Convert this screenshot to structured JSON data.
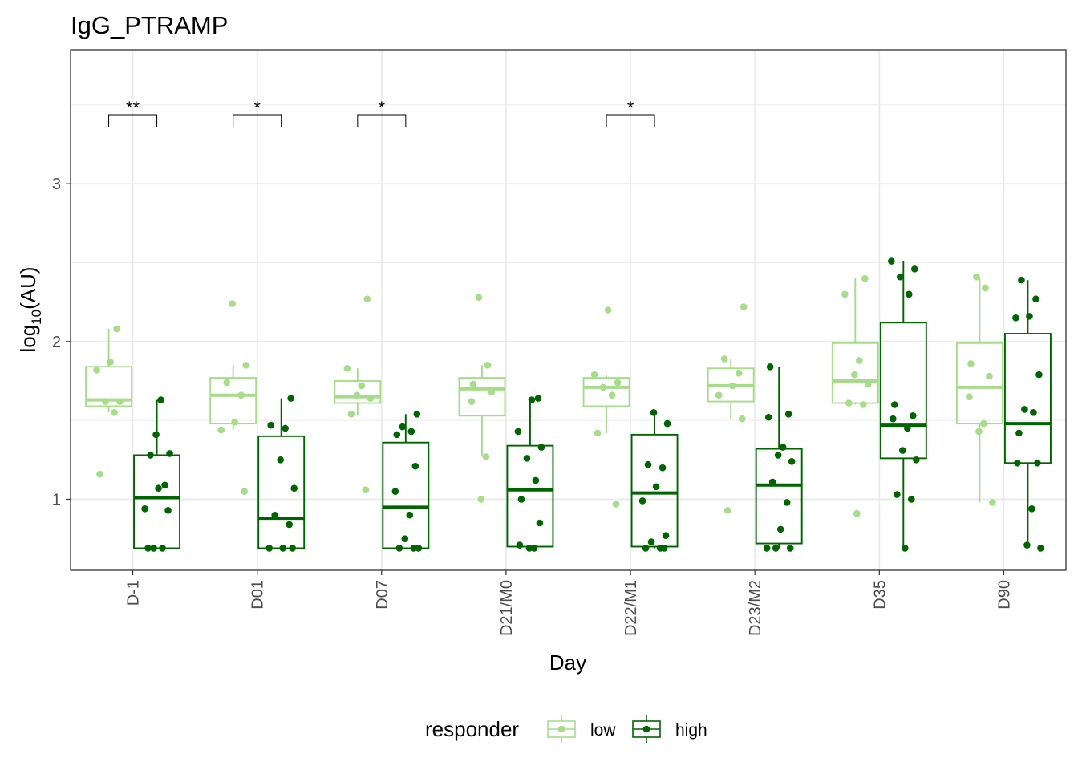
{
  "chart_data": {
    "type": "box",
    "title": "IgG_PTRAMP",
    "xlabel": "Day",
    "ylabel_main": "log",
    "ylabel_sub": "10",
    "ylabel_rest": "(AU)",
    "ylim": [
      0.55,
      3.85
    ],
    "yticks": [
      1,
      2,
      3
    ],
    "categories": [
      "D-1",
      "D01",
      "D07",
      "D21/M0",
      "D22/M1",
      "D23/M2",
      "D35",
      "D90"
    ],
    "legend": {
      "title": "responder",
      "position": "bottom"
    },
    "grid": true,
    "series": [
      {
        "name": "low",
        "color": "#a6dc8a",
        "boxes": [
          {
            "q1": 1.59,
            "median": 1.63,
            "q3": 1.84,
            "whisker_low": 1.55,
            "whisker_high": 2.08
          },
          {
            "q1": 1.48,
            "median": 1.66,
            "q3": 1.77,
            "whisker_low": 1.44,
            "whisker_high": 1.85
          },
          {
            "q1": 1.61,
            "median": 1.65,
            "q3": 1.75,
            "whisker_low": 1.53,
            "whisker_high": 1.83
          },
          {
            "q1": 1.53,
            "median": 1.7,
            "q3": 1.77,
            "whisker_low": 1.27,
            "whisker_high": 1.85
          },
          {
            "q1": 1.59,
            "median": 1.71,
            "q3": 1.77,
            "whisker_low": 1.42,
            "whisker_high": 1.79
          },
          {
            "q1": 1.62,
            "median": 1.72,
            "q3": 1.83,
            "whisker_low": 1.51,
            "whisker_high": 1.89
          },
          {
            "q1": 1.61,
            "median": 1.75,
            "q3": 1.99,
            "whisker_low": 1.6,
            "whisker_high": 2.4
          },
          {
            "q1": 1.48,
            "median": 1.71,
            "q3": 1.99,
            "whisker_low": 0.98,
            "whisker_high": 2.41
          }
        ],
        "points": [
          [
            1.16,
            1.55,
            1.62,
            1.62,
            1.82,
            1.87,
            2.08
          ],
          [
            1.05,
            1.44,
            1.49,
            1.66,
            1.74,
            1.85,
            2.24
          ],
          [
            1.06,
            1.54,
            1.64,
            1.66,
            1.72,
            1.83,
            2.27
          ],
          [
            1.0,
            1.27,
            1.62,
            1.68,
            1.73,
            1.85,
            2.28
          ],
          [
            0.97,
            1.42,
            1.66,
            1.71,
            1.74,
            1.79,
            2.2
          ],
          [
            0.93,
            1.51,
            1.66,
            1.72,
            1.8,
            1.89,
            2.22
          ],
          [
            0.91,
            1.6,
            1.61,
            1.73,
            1.79,
            1.88,
            2.3,
            2.4
          ],
          [
            0.98,
            1.43,
            1.48,
            1.65,
            1.78,
            1.86,
            2.34,
            2.41
          ]
        ]
      },
      {
        "name": "high",
        "color": "#006400",
        "boxes": [
          {
            "q1": 0.69,
            "median": 1.01,
            "q3": 1.28,
            "whisker_low": 0.69,
            "whisker_high": 1.63
          },
          {
            "q1": 0.69,
            "median": 0.88,
            "q3": 1.4,
            "whisker_low": 0.69,
            "whisker_high": 1.64
          },
          {
            "q1": 0.69,
            "median": 0.95,
            "q3": 1.36,
            "whisker_low": 0.69,
            "whisker_high": 1.54
          },
          {
            "q1": 0.7,
            "median": 1.06,
            "q3": 1.34,
            "whisker_low": 0.69,
            "whisker_high": 1.64
          },
          {
            "q1": 0.7,
            "median": 1.04,
            "q3": 1.41,
            "whisker_low": 0.69,
            "whisker_high": 1.55
          },
          {
            "q1": 0.72,
            "median": 1.09,
            "q3": 1.32,
            "whisker_low": 0.69,
            "whisker_high": 1.84
          },
          {
            "q1": 1.26,
            "median": 1.47,
            "q3": 2.12,
            "whisker_low": 0.69,
            "whisker_high": 2.51
          },
          {
            "q1": 1.23,
            "median": 1.48,
            "q3": 2.05,
            "whisker_low": 0.69,
            "whisker_high": 2.39
          }
        ],
        "points": [
          [
            0.69,
            0.69,
            0.69,
            0.93,
            0.94,
            1.07,
            1.09,
            1.28,
            1.29,
            1.41,
            1.63
          ],
          [
            0.69,
            0.69,
            0.69,
            0.84,
            0.9,
            1.07,
            1.25,
            1.45,
            1.47,
            1.64
          ],
          [
            0.69,
            0.69,
            0.69,
            0.75,
            0.9,
            1.05,
            1.21,
            1.41,
            1.43,
            1.46,
            1.54
          ],
          [
            0.69,
            0.69,
            0.71,
            0.85,
            1.0,
            1.12,
            1.26,
            1.33,
            1.43,
            1.63,
            1.64
          ],
          [
            0.69,
            0.69,
            0.69,
            0.73,
            0.77,
            0.99,
            1.08,
            1.2,
            1.22,
            1.48,
            1.55
          ],
          [
            0.69,
            0.69,
            0.69,
            0.81,
            0.98,
            1.11,
            1.24,
            1.28,
            1.33,
            1.52,
            1.54,
            1.84
          ],
          [
            0.69,
            1.0,
            1.03,
            1.25,
            1.31,
            1.45,
            1.51,
            1.53,
            1.6,
            2.3,
            2.41,
            2.46,
            2.51
          ],
          [
            0.69,
            0.71,
            0.94,
            1.23,
            1.23,
            1.42,
            1.55,
            1.57,
            1.79,
            2.15,
            2.16,
            2.27,
            2.39
          ]
        ]
      }
    ],
    "significance": [
      {
        "category": "D-1",
        "label": "**"
      },
      {
        "category": "D01",
        "label": "*"
      },
      {
        "category": "D07",
        "label": "*"
      },
      {
        "category": "D22/M1",
        "label": "*"
      }
    ]
  }
}
